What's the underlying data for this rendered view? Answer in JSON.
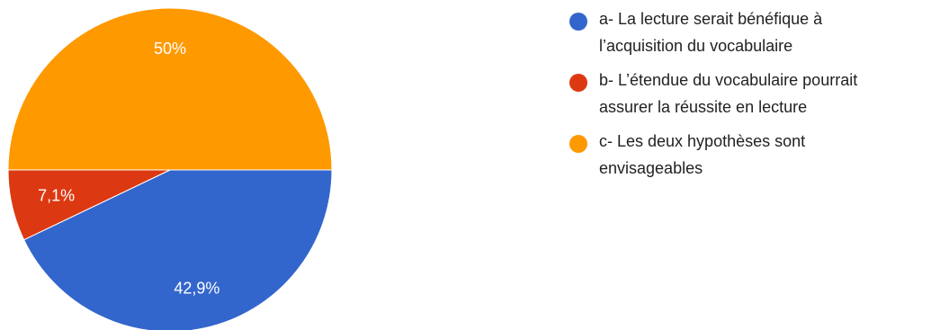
{
  "chart_data": {
    "type": "pie",
    "slices": [
      {
        "label": "a- La lecture serait bénéfique à l’acquisition du vocabulaire",
        "value": 42.9,
        "display": "42,9%",
        "color": "#3366cc"
      },
      {
        "label": "b- L’étendue du vocabulaire pourrait assurer la réussite en lecture",
        "value": 7.1,
        "display": "7,1%",
        "color": "#dc3912"
      },
      {
        "label": "c- Les deux hypothèses sont envisageables",
        "value": 50,
        "display": "50%",
        "color": "#ff9900"
      }
    ],
    "legend_position": "right"
  }
}
